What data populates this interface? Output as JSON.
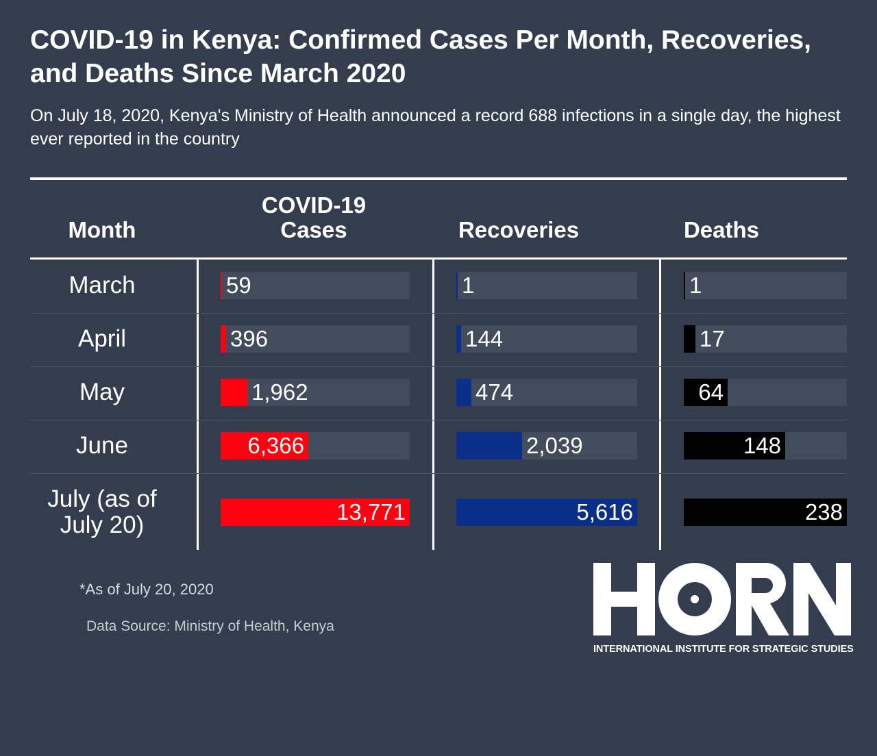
{
  "title": "COVID-19 in Kenya: Confirmed Cases Per Month, Recoveries, and Deaths Since March 2020",
  "subtitle": "On July 18, 2020, Kenya's Ministry of Health announced a record 688 infections in a single day, the highest ever reported in the country",
  "headers": {
    "month": "Month",
    "cases": "COVID-19 Cases",
    "recoveries": "Recoveries",
    "deaths": "Deaths"
  },
  "colors": {
    "cases": "#ff0010",
    "recoveries": "#0a2f8a",
    "deaths": "#000000",
    "track": "#434c5c",
    "background": "#343d4e"
  },
  "chart_data": {
    "type": "table",
    "categories": [
      "March",
      "April",
      "May",
      "June",
      "July (as of July 20)"
    ],
    "series": [
      {
        "name": "COVID-19 Cases",
        "values": [
          59,
          396,
          1962,
          6366,
          13771
        ],
        "labels": [
          "59",
          "396",
          "1,962",
          "6,366",
          "13,771"
        ]
      },
      {
        "name": "Recoveries",
        "values": [
          1,
          144,
          474,
          2039,
          5616
        ],
        "labels": [
          "1",
          "144",
          "474",
          "2,039",
          "5,616"
        ]
      },
      {
        "name": "Deaths",
        "values": [
          1,
          17,
          64,
          148,
          238
        ],
        "labels": [
          "1",
          "17",
          "64",
          "148",
          "238"
        ]
      }
    ]
  },
  "footnote": "*As of July 20, 2020",
  "source": "Data Source: Ministry of Health, Kenya",
  "logo": {
    "text": "HORN",
    "subtitle": "INTERNATIONAL INSTITUTE FOR STRATEGIC STUDIES"
  }
}
